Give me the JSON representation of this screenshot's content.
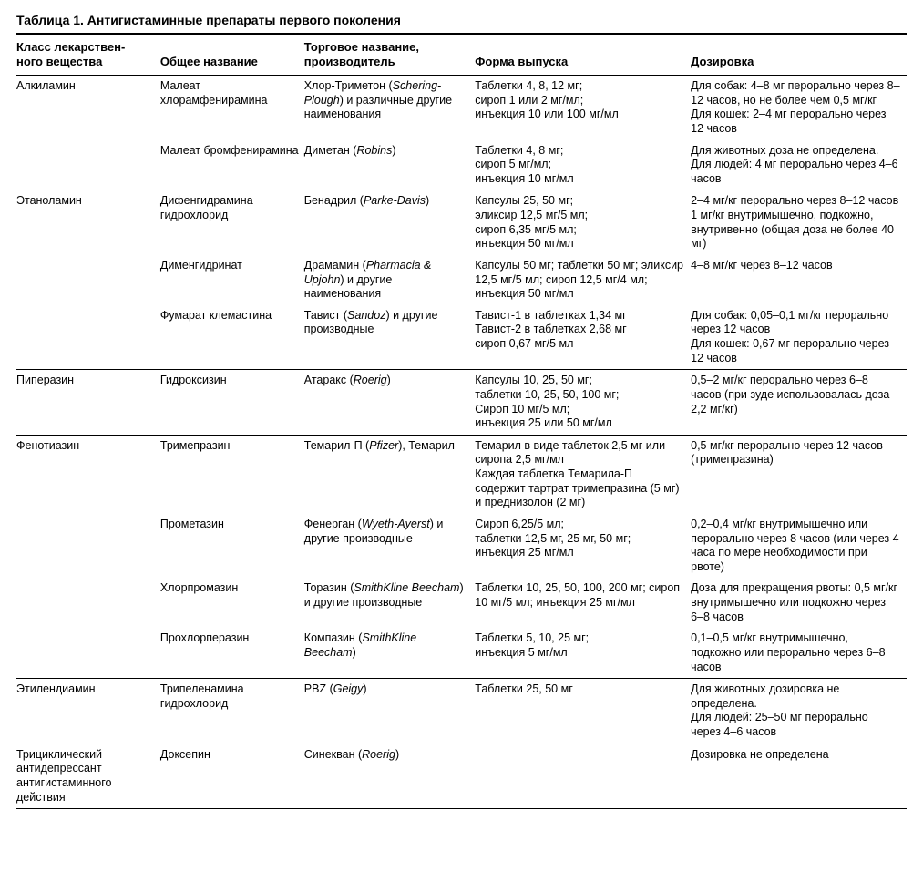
{
  "title": "Таблица 1. Антигистаминные препараты первого поколения",
  "columns": [
    "Класс лекарствен-\nного вещества",
    "Общее название",
    "Торговое название,\nпроизводитель",
    "Форма выпуска",
    "Дозировка"
  ],
  "col_widths_pct": [
    16,
    16,
    19,
    24,
    24
  ],
  "font": {
    "body_size_pt": 9.5,
    "title_size_pt": 10.5,
    "family": "Arial"
  },
  "colors": {
    "text": "#000000",
    "background": "#ffffff",
    "rule": "#000000"
  },
  "groups": [
    {
      "drug_class": "Алкиламин",
      "rows": [
        {
          "generic": "Малеат хлорамфенирамина",
          "trade": "Хлор-Триметон (Schering-Plough) и различные другие наименования",
          "form": "Таблетки 4, 8, 12 мг;\nсироп 1 или 2 мг/мл;\nинъекция 10 или 100 мг/мл",
          "dose": "Для собак: 4–8 мг перорально через 8–12 часов, но не более чем 0,5 мг/кг\nДля кошек: 2–4 мг перорально через 12 часов"
        },
        {
          "generic": "Малеат бромфенирамина",
          "trade": "Диметан (Robins)",
          "form": "Таблетки 4, 8 мг;\nсироп 5 мг/мл;\nинъекция 10 мг/мл",
          "dose": "Для животных доза не определена.\nДля людей: 4 мг перорально через 4–6 часов"
        }
      ]
    },
    {
      "drug_class": "Этаноламин",
      "rows": [
        {
          "generic": "Дифенгидрамина гидрохлорид",
          "trade": "Бенадрил (Parke-Davis)",
          "form": "Капсулы 25, 50 мг;\nэликсир 12,5 мг/5 мл;\nсироп 6,35 мг/5 мл;\nинъекция 50 мг/мл",
          "dose": "2–4 мг/кг перорально через 8–12 часов\n1 мг/кг внутримышечно, подкожно, внутривенно (общая доза не более 40 мг)"
        },
        {
          "generic": "Дименгидринат",
          "trade": "Драмамин (Pharmacia & Upjohn) и другие наименования",
          "form": "Капсулы 50 мг; таблетки 50 мг; эликсир 12,5 мг/5 мл; сироп 12,5 мг/4 мл; инъекция 50 мг/мл",
          "dose": "4–8 мг/кг через 8–12 часов"
        },
        {
          "generic": "Фумарат клемастина",
          "trade": "Тавист (Sandoz) и другие производные",
          "form": "Тавист-1 в таблетках 1,34 мг\nТавист-2 в таблетках 2,68 мг\nсироп 0,67 мг/5 мл",
          "dose": "Для собак: 0,05–0,1 мг/кг перорально через 12 часов\nДля кошек: 0,67 мг пероральн­о через 12 часов"
        }
      ]
    },
    {
      "drug_class": "Пиперазин",
      "rows": [
        {
          "generic": "Гидроксизин",
          "trade": "Атаракс (Roerig)",
          "form": "Капсулы 10, 25, 50 мг;\nтаблетки 10, 25, 50, 100 мг;\nСироп 10 мг/5 мл;\nинъекция 25 или 50 мг/мл",
          "dose": "0,5–2 мг/кг перорально через 6–8 часов (при зуде использо­валась доза 2,2 мг/кг)"
        }
      ]
    },
    {
      "drug_class": "Фенотиазин",
      "rows": [
        {
          "generic": "Тримепразин",
          "trade": "Темарил-П (Pfizer), Темарил",
          "form": "Темарил в виде таблеток 2,5 мг или сиропа 2,5 мг/мл\nКаждая таблетка Темарила-П содержит тартрат тримепразина (5 мг) и преднизолон (2 мг)",
          "dose": "0,5 мг/кг перорально через 12 часов (тримепразина)"
        },
        {
          "generic": "Прометазин",
          "trade": "Фенерган (Wyeth-Ayerst) и другие производные",
          "form": "Сироп 6,25/5 мл;\nтаблетки 12,5 мг, 25 мг, 50 мг;\nинъекция 25 мг/мл",
          "dose": "0,2–0,4 мг/кг внутримышечно или перорально через 8 часов (или через 4 часа по мере необходимости при рвоте)"
        },
        {
          "generic": "Хлорпромазин",
          "trade": "Торазин (SmithKline Beecham) и другие производные",
          "form": "Таблетки 10, 25, 50, 100, 200 мг; сироп 10 мг/5 мл; инъекция 25 мг/мл",
          "dose": "Доза для прекращения рвоты: 0,5 мг/кг внутримышечно или подкожно через 6–8 часов"
        },
        {
          "generic": "Прохлорперазин",
          "trade": "Компазин (SmithKline Beecham)",
          "form": "Таблетки 5, 10, 25 мг;\nинъекция 5 мг/мл",
          "dose": "0,1–0,5 мг/кг внутримышечно, подкожно или перорально через 6–8 часов"
        }
      ]
    },
    {
      "drug_class": "Этилендиамин",
      "rows": [
        {
          "generic": "Трипеленамина гидрохлорид",
          "trade": "PBZ (Geigy)",
          "form": "Таблетки 25, 50 мг",
          "dose": "Для животных дозировка не определена.\nДля людей: 25–50 мг перорально через 4–6 часов"
        }
      ]
    },
    {
      "drug_class": "Трициклический антидепрессант антигистаминного действия",
      "rows": [
        {
          "generic": "Доксепин",
          "trade": "Синекван (Roerig)",
          "form": "",
          "dose": "Дозировка не определена"
        }
      ]
    }
  ]
}
